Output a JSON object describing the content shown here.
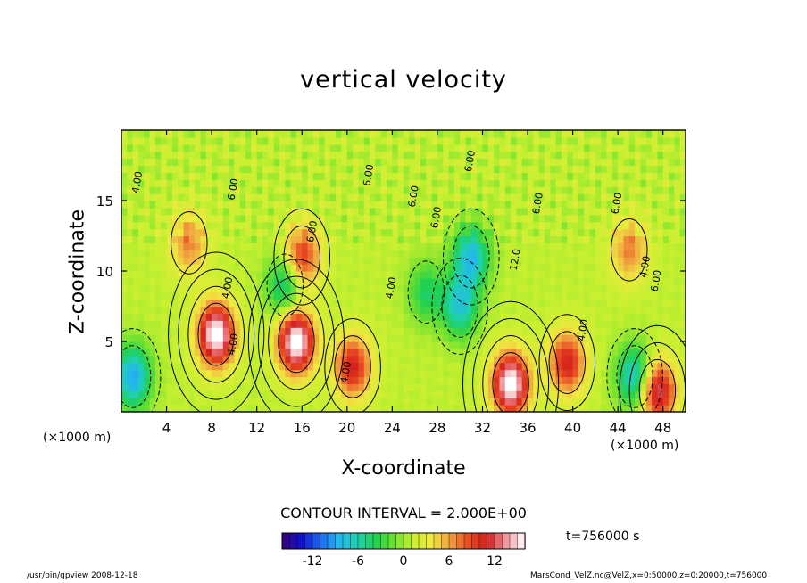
{
  "chart_data": {
    "type": "contour",
    "title": "vertical velocity",
    "xlabel": "X-coordinate",
    "ylabel": "Z-coordinate",
    "x_unit": "(×1000 m)",
    "y_unit": "(×1000 m)",
    "x_ticks": [
      4,
      8,
      12,
      16,
      20,
      24,
      28,
      32,
      36,
      40,
      44,
      48
    ],
    "y_ticks": [
      5,
      10,
      15
    ],
    "xlim": [
      0,
      50
    ],
    "ylim": [
      0,
      20
    ],
    "contour_interval_text": "CONTOUR INTERVAL = 2.000E+00",
    "contour_interval": 2.0,
    "time_text": "t=756000 s",
    "colorbar": {
      "range": [
        -16,
        16
      ],
      "ticks": [
        -12,
        -6,
        0,
        6,
        12
      ],
      "tick_labels": [
        "-12",
        "-6",
        "0",
        "6",
        "12"
      ]
    },
    "contour_labels": [
      "4.00",
      "4.00",
      "4.00",
      "4.00",
      "4.00",
      "4.00",
      "4.00",
      "6.00",
      "6.00",
      "6.00",
      "6.00",
      "6.00",
      "6.00",
      "6.00",
      "6.00",
      "6.00",
      "12.0"
    ],
    "features": [
      {
        "x": 8.4,
        "z": 5.5,
        "value": 16,
        "sign": "up"
      },
      {
        "x": 15.5,
        "z": 5.0,
        "value": 16,
        "sign": "up"
      },
      {
        "x": 20.5,
        "z": 3.2,
        "value": 10,
        "sign": "up"
      },
      {
        "x": 39.5,
        "z": 3.5,
        "value": 10,
        "sign": "up"
      },
      {
        "x": 47.5,
        "z": 1.5,
        "value": 12,
        "sign": "up"
      },
      {
        "x": 34.5,
        "z": 2.0,
        "value": 16,
        "sign": "up"
      },
      {
        "x": 16.0,
        "z": 11.0,
        "value": 9,
        "sign": "up"
      },
      {
        "x": 6.0,
        "z": 12.0,
        "value": 6,
        "sign": "up"
      },
      {
        "x": 45.0,
        "z": 11.5,
        "value": 6,
        "sign": "up"
      },
      {
        "x": 1.0,
        "z": 2.5,
        "value": -10,
        "sign": "down"
      },
      {
        "x": 31.0,
        "z": 11.0,
        "value": -9,
        "sign": "down"
      },
      {
        "x": 30.0,
        "z": 7.5,
        "value": -8,
        "sign": "down"
      },
      {
        "x": 14.5,
        "z": 9.0,
        "value": -7,
        "sign": "down"
      },
      {
        "x": 45.5,
        "z": 2.5,
        "value": -9,
        "sign": "down"
      },
      {
        "x": 27.0,
        "z": 8.5,
        "value": -5,
        "sign": "down"
      }
    ]
  },
  "footer": {
    "left": "/usr/bin/gpview  2008-12-18",
    "right": "MarsCond_VelZ.nc@VelZ,x=0:50000,z=0:20000,t=756000"
  },
  "colors": {
    "colormap": [
      "#3a0078",
      "#1010c8",
      "#1e64f0",
      "#24b4f0",
      "#20d0b4",
      "#20d050",
      "#6ee030",
      "#c8f030",
      "#f0e840",
      "#f0a040",
      "#e84a20",
      "#d21e1e",
      "#f09aa0",
      "#ffffff"
    ]
  }
}
